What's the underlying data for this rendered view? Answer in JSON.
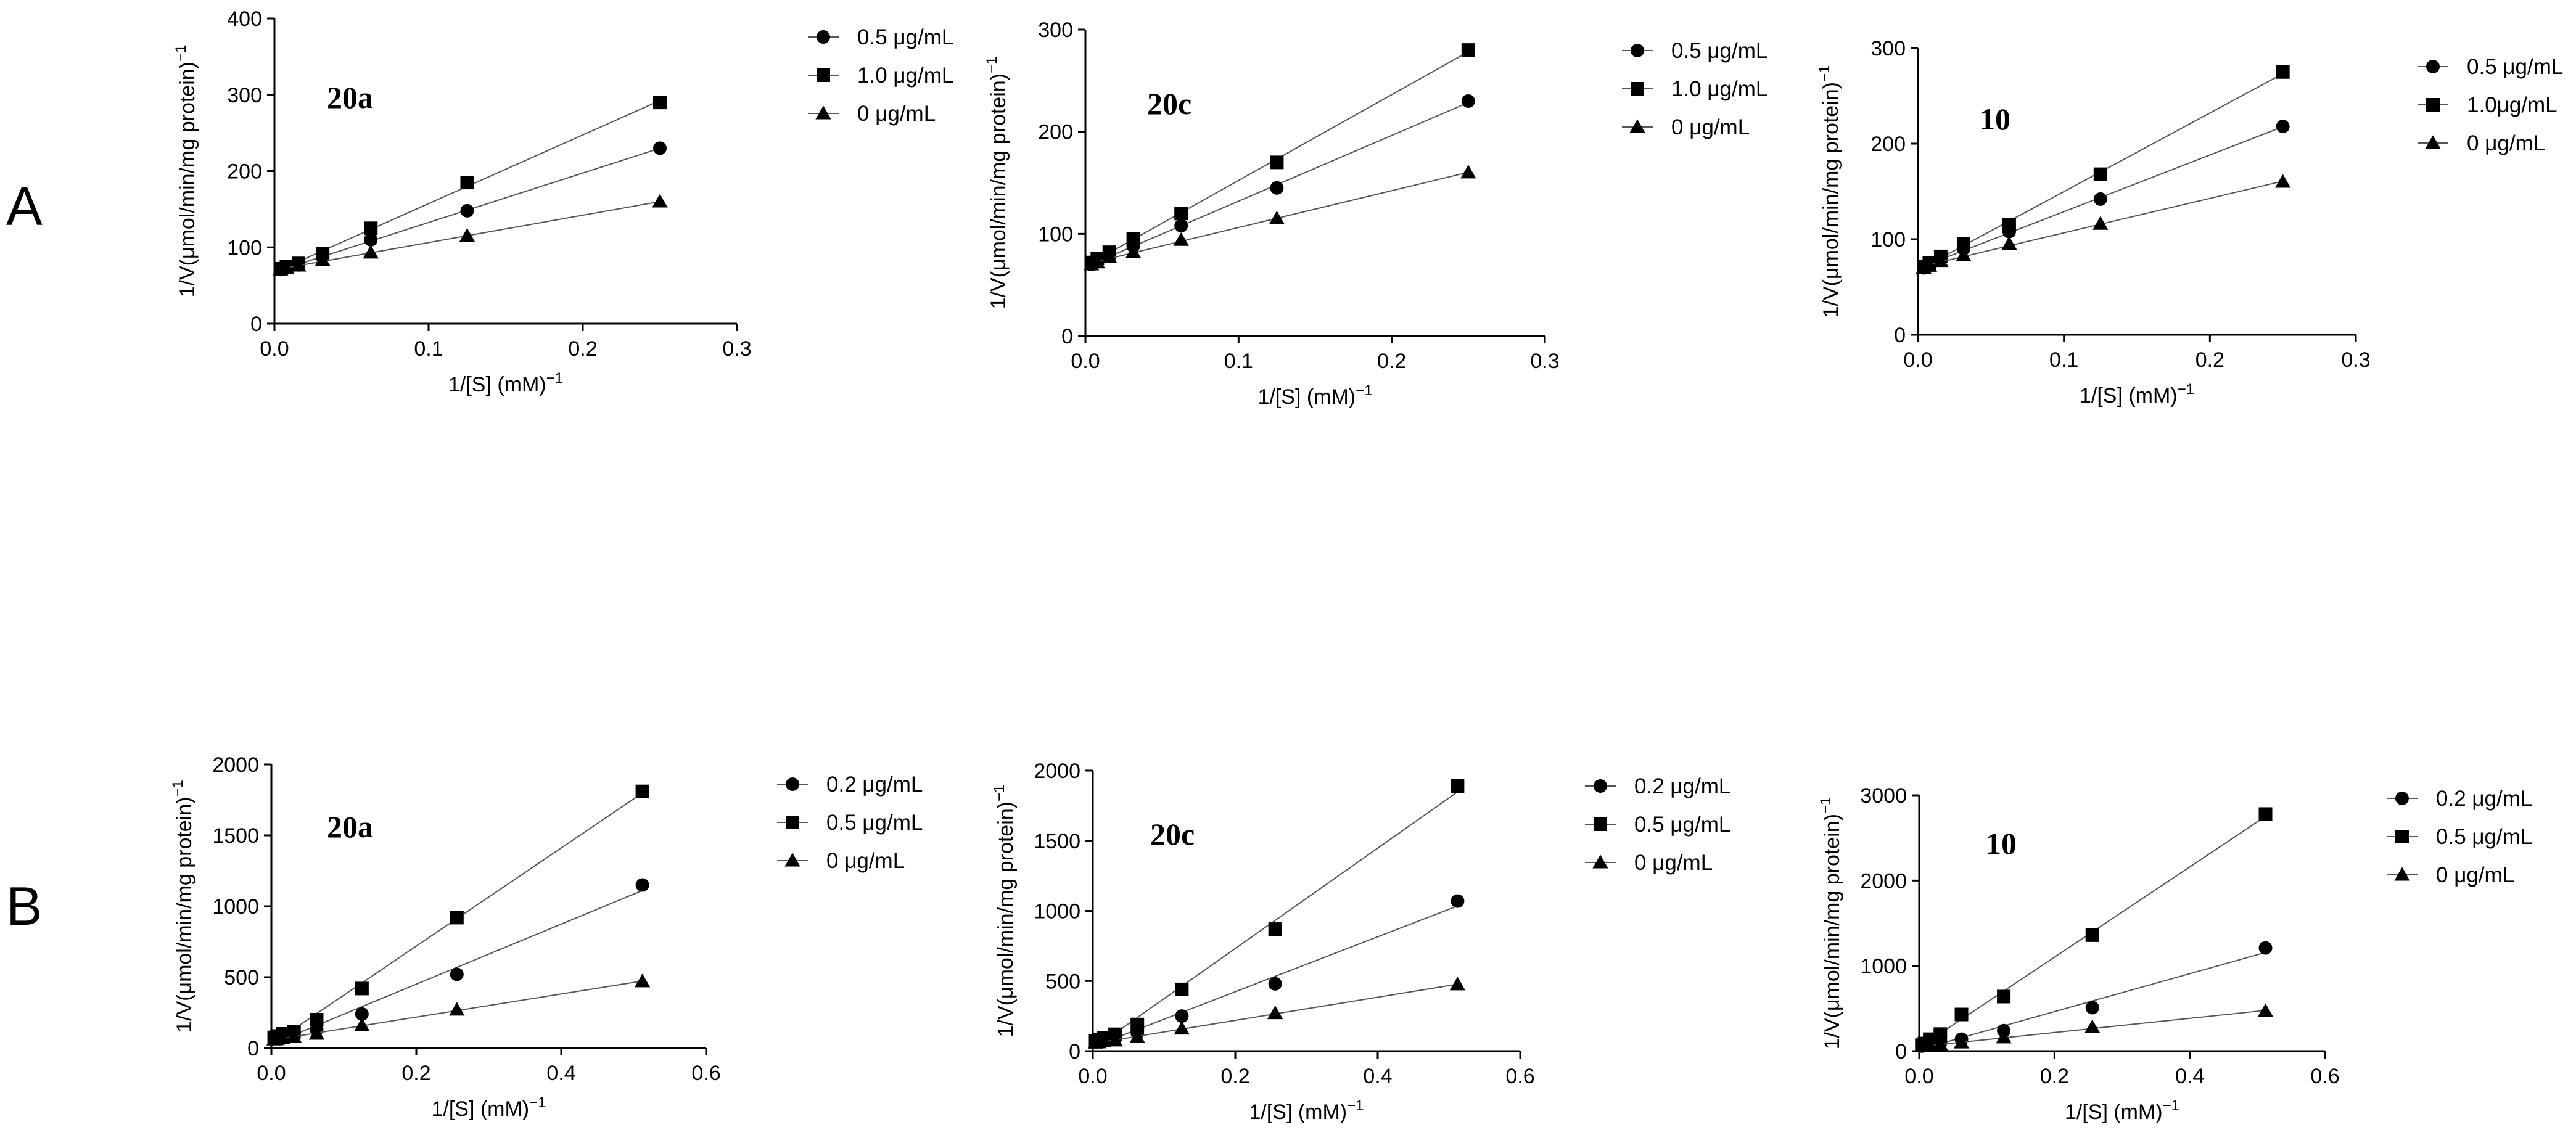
{
  "row_labels": [
    "A",
    "B"
  ],
  "chart_data": [
    {
      "type": "scatter",
      "row": "A",
      "title": "20a",
      "xlabel": "1/[S] (mM)",
      "xlabel_sup": "−1",
      "ylabel": "1/V(μmol/min/mg protein)",
      "ylabel_sup": "−1",
      "xlim": [
        0,
        0.3
      ],
      "ylim": [
        0,
        400
      ],
      "xticks": [
        0.0,
        0.1,
        0.2,
        0.3
      ],
      "yticks": [
        0,
        100,
        200,
        300,
        400
      ],
      "xtick_labels": [
        "0.0",
        "0.1",
        "0.2",
        "0.3"
      ],
      "ytick_labels": [
        "0",
        "100",
        "200",
        "300",
        "400"
      ],
      "x": [
        0.0039,
        0.0078,
        0.0156,
        0.03125,
        0.0625,
        0.125,
        0.25
      ],
      "series": [
        {
          "name": "0.5 μg/mL",
          "marker": "circle",
          "values": [
            71,
            73,
            77,
            87,
            110,
            148,
            230
          ]
        },
        {
          "name": "1.0 μg/mL",
          "marker": "square",
          "values": [
            72,
            75,
            79,
            92,
            125,
            185,
            290
          ]
        },
        {
          "name": "0 μg/mL",
          "marker": "triangle",
          "values": [
            71,
            73,
            76,
            83,
            93,
            115,
            160
          ]
        }
      ]
    },
    {
      "type": "scatter",
      "row": "A",
      "title": "20c",
      "xlabel": "1/[S] (mM)",
      "xlabel_sup": "−1",
      "ylabel": "1/V(μmol/min/mg protein)",
      "ylabel_sup": "−1",
      "xlim": [
        0,
        0.3
      ],
      "ylim": [
        0,
        300
      ],
      "xticks": [
        0.0,
        0.1,
        0.2,
        0.3
      ],
      "yticks": [
        0,
        100,
        200,
        300
      ],
      "xtick_labels": [
        "0.0",
        "0.1",
        "0.2",
        "0.3"
      ],
      "ytick_labels": [
        "0",
        "100",
        "200",
        "300"
      ],
      "x": [
        0.0039,
        0.0078,
        0.0156,
        0.03125,
        0.0625,
        0.125,
        0.25
      ],
      "series": [
        {
          "name": "0.5 μg/mL",
          "marker": "circle",
          "values": [
            70,
            74,
            78,
            88,
            108,
            145,
            230
          ]
        },
        {
          "name": "1.0 μg/mL",
          "marker": "square",
          "values": [
            72,
            76,
            82,
            95,
            120,
            170,
            280
          ]
        },
        {
          "name": "0 μg/mL",
          "marker": "triangle",
          "values": [
            70,
            72,
            77,
            82,
            94,
            115,
            160
          ]
        }
      ]
    },
    {
      "type": "scatter",
      "row": "A",
      "title": "10",
      "xlabel": "1/[S] (mM)",
      "xlabel_sup": "−1",
      "ylabel": "1/V(μmol/min/mg protein)",
      "ylabel_sup": "−1",
      "xlim": [
        0,
        0.3
      ],
      "ylim": [
        0,
        300
      ],
      "xticks": [
        0.0,
        0.1,
        0.2,
        0.3
      ],
      "yticks": [
        0,
        100,
        200,
        300
      ],
      "xtick_labels": [
        "0.0",
        "0.1",
        "0.2",
        "0.3"
      ],
      "ytick_labels": [
        "0",
        "100",
        "200",
        "300"
      ],
      "x": [
        0.0039,
        0.0078,
        0.0156,
        0.03125,
        0.0625,
        0.125,
        0.25
      ],
      "series": [
        {
          "name": "0.5 μg/mL",
          "marker": "circle",
          "values": [
            70,
            74,
            79,
            90,
            108,
            142,
            218
          ]
        },
        {
          "name": "1.0μg/mL",
          "marker": "square",
          "values": [
            71,
            75,
            82,
            95,
            115,
            168,
            275
          ]
        },
        {
          "name": "0 μg/mL",
          "marker": "triangle",
          "values": [
            70,
            72,
            77,
            83,
            95,
            116,
            160
          ]
        }
      ]
    },
    {
      "type": "scatter",
      "row": "B",
      "title": "20a",
      "xlabel": "1/[S] (mM)",
      "xlabel_sup": "−1",
      "ylabel": "1/V(μmol/min/mg protein)",
      "ylabel_sup": "−1",
      "xlim": [
        0,
        0.6
      ],
      "ylim": [
        0,
        2000
      ],
      "xticks": [
        0.0,
        0.2,
        0.4,
        0.6
      ],
      "yticks": [
        0,
        500,
        1000,
        1500,
        2000
      ],
      "xtick_labels": [
        "0.0",
        "0.2",
        "0.4",
        "0.6"
      ],
      "ytick_labels": [
        "0",
        "500",
        "1000",
        "1500",
        "2000"
      ],
      "x": [
        0.0039,
        0.0078,
        0.0156,
        0.03125,
        0.0625,
        0.125,
        0.256,
        0.512
      ],
      "series": [
        {
          "name": "0.2 μg/mL",
          "marker": "circle",
          "values": [
            70,
            75,
            85,
            95,
            130,
            240,
            520,
            1150
          ]
        },
        {
          "name": "0.5 μg/mL",
          "marker": "square",
          "values": [
            75,
            85,
            100,
            115,
            200,
            420,
            920,
            1810
          ]
        },
        {
          "name": "0 μg/mL",
          "marker": "triangle",
          "values": [
            60,
            62,
            70,
            78,
            100,
            160,
            270,
            470
          ]
        }
      ]
    },
    {
      "type": "scatter",
      "row": "B",
      "title": "20c",
      "xlabel": "1/[S] (mM)",
      "xlabel_sup": "−1",
      "ylabel": "1/V(μmol/min/mg protein)",
      "ylabel_sup": "−1",
      "xlim": [
        0,
        0.6
      ],
      "ylim": [
        0,
        2000
      ],
      "xticks": [
        0.0,
        0.2,
        0.4,
        0.6
      ],
      "yticks": [
        0,
        500,
        1000,
        1500,
        2000
      ],
      "xtick_labels": [
        "0.0",
        "0.2",
        "0.4",
        "0.6"
      ],
      "ytick_labels": [
        "0",
        "500",
        "1000",
        "1500",
        "2000"
      ],
      "x": [
        0.0039,
        0.0078,
        0.0156,
        0.03125,
        0.0625,
        0.125,
        0.256,
        0.512
      ],
      "series": [
        {
          "name": "0.2 μg/mL",
          "marker": "circle",
          "values": [
            68,
            72,
            80,
            90,
            130,
            250,
            480,
            1070
          ]
        },
        {
          "name": "0.5 μg/mL",
          "marker": "square",
          "values": [
            72,
            80,
            95,
            120,
            190,
            440,
            870,
            1890
          ]
        },
        {
          "name": "0 μg/mL",
          "marker": "triangle",
          "values": [
            60,
            62,
            68,
            75,
            100,
            160,
            270,
            475
          ]
        }
      ]
    },
    {
      "type": "scatter",
      "row": "B",
      "title": "10",
      "xlabel": "1/[S] (mM)",
      "xlabel_sup": "−1",
      "ylabel": "1/V(μmol/min/mg protein)",
      "ylabel_sup": "−1",
      "xlim": [
        0,
        0.6
      ],
      "ylim": [
        0,
        3000
      ],
      "xticks": [
        0.0,
        0.2,
        0.4,
        0.6
      ],
      "yticks": [
        0,
        1000,
        2000,
        3000
      ],
      "xtick_labels": [
        "0.0",
        "0.2",
        "0.4",
        "0.6"
      ],
      "ytick_labels": [
        "0",
        "1000",
        "2000",
        "3000"
      ],
      "x": [
        0.0039,
        0.0078,
        0.0156,
        0.03125,
        0.0625,
        0.125,
        0.256,
        0.512
      ],
      "series": [
        {
          "name": "0.2 μg/mL",
          "marker": "circle",
          "values": [
            60,
            70,
            80,
            95,
            140,
            240,
            510,
            1210
          ]
        },
        {
          "name": "0.5 μg/mL",
          "marker": "square",
          "values": [
            70,
            90,
            140,
            200,
            430,
            640,
            1360,
            2780
          ]
        },
        {
          "name": "0 μg/mL",
          "marker": "triangle",
          "values": [
            55,
            58,
            64,
            75,
            100,
            160,
            280,
            470
          ]
        }
      ]
    }
  ]
}
